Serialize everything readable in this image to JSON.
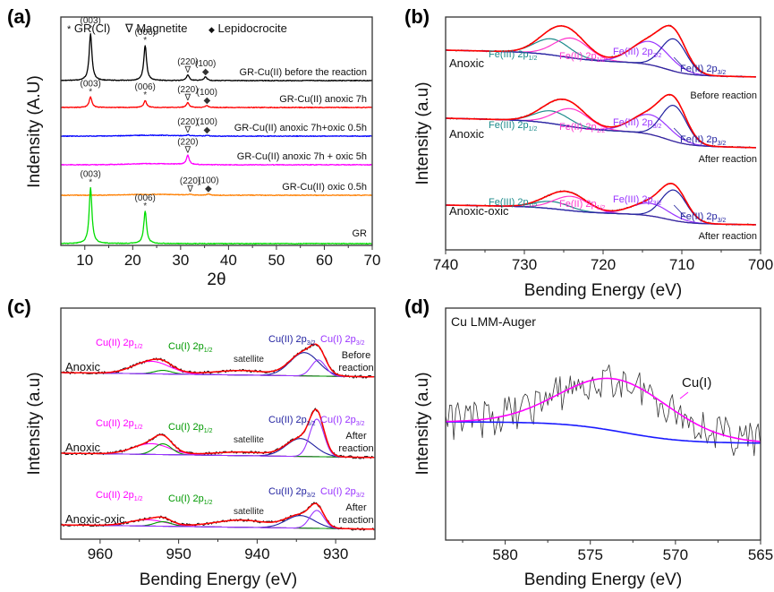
{
  "figure": {
    "panels": [
      "(a)",
      "(b)",
      "(c)",
      "(d)"
    ]
  },
  "chart_data": [
    {
      "panel": "(a)",
      "type": "line",
      "title": "",
      "xlabel": "2θ",
      "ylabel": "Indensity (A.U)",
      "xlim": [
        5,
        70
      ],
      "xticks": [
        10,
        20,
        30,
        40,
        50,
        60,
        70
      ],
      "grid": false,
      "legend": {
        "placement": "top",
        "entries": [
          {
            "symbol": "*",
            "label": "GR(Cl)"
          },
          {
            "symbol": "∇",
            "label": "Magnetite"
          },
          {
            "symbol": "◆",
            "label": "Lepidocrocite"
          }
        ]
      },
      "series": [
        {
          "name": "GR-Cu(II) before the reaction",
          "color": "#000000",
          "peaks": [
            {
              "x": 11.2,
              "h": 1.0,
              "label": "(003)",
              "marker": "*"
            },
            {
              "x": 22.6,
              "h": 0.75,
              "label": "(006)",
              "marker": "*"
            },
            {
              "x": 31.5,
              "h": 0.12,
              "label": "(220)",
              "marker": "∇"
            },
            {
              "x": 35.2,
              "h": 0.08,
              "label": "(100)",
              "marker": "◆"
            }
          ]
        },
        {
          "name": "GR-Cu(II) anoxic 7h",
          "color": "#ff0000",
          "peaks": [
            {
              "x": 11.2,
              "h": 0.45,
              "label": "(003)",
              "marker": "*"
            },
            {
              "x": 22.6,
              "h": 0.3,
              "label": "(006)",
              "marker": "*"
            },
            {
              "x": 31.5,
              "h": 0.2,
              "label": "(220)",
              "marker": "∇"
            },
            {
              "x": 35.5,
              "h": 0.08,
              "label": "(100)",
              "marker": "◆"
            }
          ]
        },
        {
          "name": "GR-Cu(II) anoxic 7h+oxic 0.5h",
          "color": "#0000ff",
          "peaks": [
            {
              "x": 31.5,
              "h": 0.06,
              "label": "(220)",
              "marker": "∇"
            },
            {
              "x": 35.5,
              "h": 0.05,
              "label": "(100)",
              "marker": "◆"
            }
          ]
        },
        {
          "name": "GR-Cu(II) anoxic 7h + oxic 5h",
          "color": "#ff00ff",
          "peaks": [
            {
              "x": 31.5,
              "h": 0.4,
              "label": "(220)",
              "marker": "∇"
            }
          ]
        },
        {
          "name": "GR-Cu(II) oxic 0.5h",
          "color": "#ff7f00",
          "peaks": [
            {
              "x": 32.0,
              "h": 0.05,
              "label": "(220)",
              "marker": "∇"
            },
            {
              "x": 35.8,
              "h": 0.08,
              "label": "(100)",
              "marker": "◆"
            }
          ]
        },
        {
          "name": "GR",
          "color": "#00dd00",
          "peaks": [
            {
              "x": 11.2,
              "h": 1.3,
              "label": "(003)",
              "marker": "*"
            },
            {
              "x": 22.6,
              "h": 0.75,
              "label": "(006)",
              "marker": "*"
            }
          ]
        }
      ]
    },
    {
      "panel": "(b)",
      "type": "line",
      "title": "",
      "xlabel": "Bending Energy (eV)",
      "ylabel": "Intensity (a.u)",
      "xlim": [
        740,
        700
      ],
      "xticks": [
        740,
        730,
        720,
        710,
        700
      ],
      "grid": false,
      "spectra": [
        {
          "sample": "Anoxic",
          "note": "Before reaction",
          "components": [
            {
              "name": "Fe(III) 2p1/2",
              "color": "#1a8a8a",
              "center": 726.5
            },
            {
              "name": "Fe(II) 2p1/2",
              "color": "#ff33cc",
              "center": 724.0
            },
            {
              "name": "Fe(III) 2p3/2",
              "color": "#9933ff",
              "center": 714.0
            },
            {
              "name": "Fe(II) 2p3/2",
              "color": "#1f1f9f",
              "center": 711.0
            }
          ]
        },
        {
          "sample": "Anoxic",
          "note": "After reaction",
          "components": [
            {
              "name": "Fe(III) 2p1/2",
              "color": "#1a8a8a",
              "center": 726.5
            },
            {
              "name": "Fe(II) 2p1/2",
              "color": "#ff33cc",
              "center": 724.0
            },
            {
              "name": "Fe(III) 2p3/2",
              "color": "#9933ff",
              "center": 714.0
            },
            {
              "name": "Fe(II) 2p3/2",
              "color": "#1f1f9f",
              "center": 711.0
            }
          ]
        },
        {
          "sample": "Anoxic-oxic",
          "note": "After reaction",
          "components": [
            {
              "name": "Fe(III) 2p1/2",
              "color": "#1a8a8a",
              "center": 726.5
            },
            {
              "name": "Fe(II) 2p1/2",
              "color": "#ff33cc",
              "center": 724.0
            },
            {
              "name": "Fe(III) 2p3/2",
              "color": "#9933ff",
              "center": 714.0
            },
            {
              "name": "Fe(II) 2p3/2",
              "color": "#1f1f9f",
              "center": 711.0
            }
          ]
        }
      ]
    },
    {
      "panel": "(c)",
      "type": "line",
      "title": "",
      "xlabel": "Bending Energy (eV)",
      "ylabel": "Intensity (a.u)",
      "xlim": [
        965,
        925
      ],
      "xticks": [
        960,
        950,
        940,
        930
      ],
      "grid": false,
      "spectra": [
        {
          "sample": "Anoxic",
          "note": [
            "Before",
            "reaction"
          ],
          "components": [
            {
              "name": "Cu(II) 2p1/2",
              "color": "#ff00ff",
              "center": 953.5
            },
            {
              "name": "Cu(I) 2p1/2",
              "color": "#009900",
              "center": 952.0
            },
            {
              "name": "satellite",
              "color": "#222222",
              "center": 942.0
            },
            {
              "name": "Cu(II) 2p3/2",
              "color": "#1f1f9f",
              "center": 934.0
            },
            {
              "name": "Cu(I) 2p3/2",
              "color": "#9933ff",
              "center": 932.2
            }
          ]
        },
        {
          "sample": "Anoxic",
          "note": [
            "After",
            "reaction"
          ],
          "components": [
            {
              "name": "Cu(II) 2p1/2",
              "color": "#ff00ff",
              "center": 953.5
            },
            {
              "name": "Cu(I) 2p1/2",
              "color": "#009900",
              "center": 952.0
            },
            {
              "name": "satellite",
              "color": "#222222",
              "center": 942.0
            },
            {
              "name": "Cu(II) 2p3/2",
              "color": "#1f1f9f",
              "center": 934.5
            },
            {
              "name": "Cu(I) 2p3/2",
              "color": "#9933ff",
              "center": 932.4
            }
          ]
        },
        {
          "sample": "Anoxic-oxic",
          "note": [
            "After",
            "reaction"
          ],
          "components": [
            {
              "name": "Cu(II) 2p1/2",
              "color": "#ff00ff",
              "center": 954.0
            },
            {
              "name": "Cu(I) 2p1/2",
              "color": "#009900",
              "center": 952.0
            },
            {
              "name": "satellite",
              "color": "#222222",
              "center": 942.0
            },
            {
              "name": "Cu(II) 2p3/2",
              "color": "#1f1f9f",
              "center": 934.5
            },
            {
              "name": "Cu(I) 2p3/2",
              "color": "#9933ff",
              "center": 932.4
            }
          ]
        }
      ]
    },
    {
      "panel": "(d)",
      "type": "line",
      "title": "Cu LMM-Auger",
      "xlabel": "Bending Energy (eV)",
      "ylabel": "Intensity (a.u)",
      "xlim": [
        583,
        565
      ],
      "xticks": [
        580,
        575,
        570,
        565
      ],
      "grid": false,
      "series": [
        {
          "name": "raw",
          "color": "#333333"
        },
        {
          "name": "Cu(I)",
          "color": "#ff00ff",
          "center": 573.5
        },
        {
          "name": "background",
          "color": "#1a1aff"
        }
      ]
    }
  ]
}
